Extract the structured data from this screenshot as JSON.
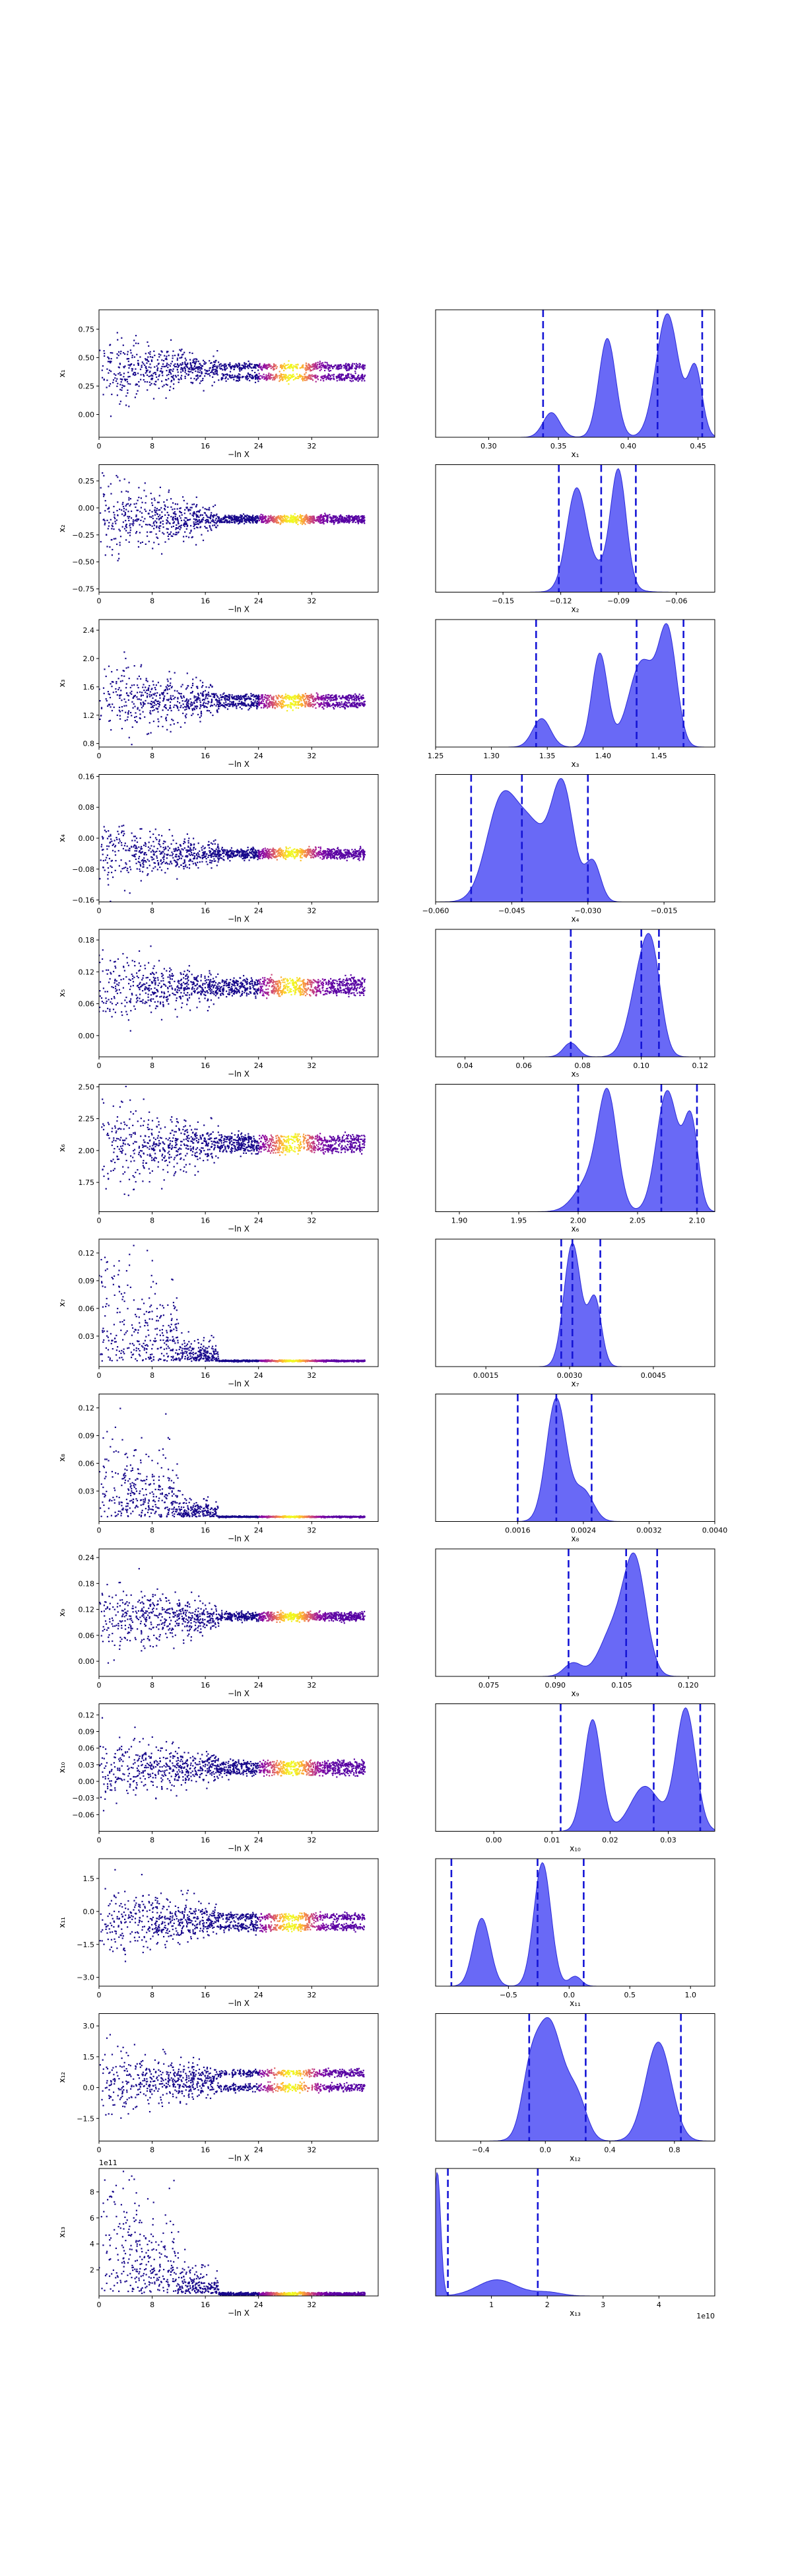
{
  "figure": {
    "kind": "nested-sampling trace and posterior plot"
  },
  "chart_data": [
    {
      "type": "scatter",
      "panel": "trace",
      "xlabel": "−ln X",
      "ylabel": "x₁",
      "xticks": [
        0,
        8,
        16,
        24,
        32
      ],
      "xlim": [
        0,
        42
      ],
      "ylim": [
        -0.2,
        0.92
      ],
      "yticks": [
        0.0,
        0.25,
        0.5,
        0.75
      ],
      "yfmt": 2,
      "center": 0.4,
      "amp0": 0.28,
      "ampEnd": 0.02,
      "clusters": [
        0.33,
        0.42
      ]
    },
    {
      "type": "area",
      "panel": "posterior",
      "xlabel": "x₁",
      "xlim": [
        0.262,
        0.462
      ],
      "xticks": [
        0.3,
        0.35,
        0.4,
        0.45
      ],
      "xfmt": 2,
      "peaks": [
        [
          0.345,
          0.006,
          0.2
        ],
        [
          0.385,
          0.006,
          0.8
        ],
        [
          0.428,
          0.008,
          1.0
        ],
        [
          0.448,
          0.005,
          0.55
        ]
      ],
      "quantiles": [
        0.339,
        0.421,
        0.453
      ]
    },
    {
      "type": "scatter",
      "panel": "trace",
      "xlabel": "−ln X",
      "ylabel": "x₂",
      "xticks": [
        0,
        8,
        16,
        24,
        32
      ],
      "xlim": [
        0,
        42
      ],
      "ylim": [
        -0.78,
        0.4
      ],
      "yticks": [
        -0.75,
        -0.5,
        -0.25,
        0.0,
        0.25
      ],
      "yfmt": 2,
      "center": -0.1,
      "amp0": 0.33,
      "ampEnd": 0.015,
      "clusters": [
        -0.12,
        -0.09
      ]
    },
    {
      "type": "area",
      "panel": "posterior",
      "xlabel": "x₂",
      "xlim": [
        -0.185,
        -0.04
      ],
      "xticks": [
        -0.15,
        -0.12,
        -0.09,
        -0.06
      ],
      "xfmt": 2,
      "peaks": [
        [
          -0.112,
          0.005,
          0.85
        ],
        [
          -0.09,
          0.004,
          1.0
        ],
        [
          -0.1,
          0.01,
          0.2
        ]
      ],
      "quantiles": [
        -0.121,
        -0.099,
        -0.081
      ]
    },
    {
      "type": "scatter",
      "panel": "trace",
      "xlabel": "−ln X",
      "ylabel": "x₃",
      "xticks": [
        0,
        8,
        16,
        24,
        32
      ],
      "xlim": [
        0,
        42
      ],
      "ylim": [
        0.75,
        2.55
      ],
      "yticks": [
        0.8,
        1.2,
        1.6,
        2.0,
        2.4
      ],
      "yfmt": 1,
      "center": 1.42,
      "amp0": 0.5,
      "ampEnd": 0.03,
      "clusters": [
        1.35,
        1.45
      ]
    },
    {
      "type": "area",
      "panel": "posterior",
      "xlabel": "x₃",
      "xlim": [
        1.25,
        1.5
      ],
      "xticks": [
        1.25,
        1.3,
        1.35,
        1.4,
        1.45
      ],
      "xfmt": 2,
      "peaks": [
        [
          1.345,
          0.008,
          0.25
        ],
        [
          1.397,
          0.007,
          0.82
        ],
        [
          1.435,
          0.012,
          0.75
        ],
        [
          1.458,
          0.008,
          0.95
        ]
      ],
      "quantiles": [
        1.34,
        1.43,
        1.472
      ]
    },
    {
      "type": "scatter",
      "panel": "trace",
      "xlabel": "−ln X",
      "ylabel": "x₄",
      "xticks": [
        0,
        8,
        16,
        24,
        32
      ],
      "xlim": [
        0,
        42
      ],
      "ylim": [
        -0.165,
        0.165
      ],
      "yticks": [
        -0.16,
        -0.08,
        0.0,
        0.08,
        0.16
      ],
      "yfmt": 2,
      "center": -0.04,
      "amp0": 0.07,
      "ampEnd": 0.006,
      "clusters": [
        -0.045,
        -0.035
      ]
    },
    {
      "type": "area",
      "panel": "posterior",
      "xlabel": "x₄",
      "xlim": [
        -0.06,
        -0.005
      ],
      "xticks": [
        -0.06,
        -0.045,
        -0.03,
        -0.015
      ],
      "xfmt": 3,
      "peaks": [
        [
          -0.047,
          0.003,
          0.88
        ],
        [
          -0.041,
          0.003,
          0.6
        ],
        [
          -0.035,
          0.0022,
          1.0
        ],
        [
          -0.029,
          0.0015,
          0.35
        ]
      ],
      "quantiles": [
        -0.053,
        -0.043,
        -0.03
      ]
    },
    {
      "type": "scatter",
      "panel": "trace",
      "xlabel": "−ln X",
      "ylabel": "x₅",
      "xticks": [
        0,
        8,
        16,
        24,
        32
      ],
      "xlim": [
        0,
        42
      ],
      "ylim": [
        -0.04,
        0.2
      ],
      "yticks": [
        0.0,
        0.06,
        0.12,
        0.18
      ],
      "yfmt": 2,
      "center": 0.09,
      "amp0": 0.06,
      "ampEnd": 0.006,
      "clusters": [
        0.085,
        0.1
      ]
    },
    {
      "type": "area",
      "panel": "posterior",
      "xlabel": "x₅",
      "xlim": [
        0.03,
        0.125
      ],
      "xticks": [
        0.04,
        0.06,
        0.08,
        0.1,
        0.12
      ],
      "xfmt": 2,
      "peaks": [
        [
          0.076,
          0.0025,
          0.15
        ],
        [
          0.1,
          0.004,
          0.85
        ],
        [
          0.104,
          0.003,
          0.7
        ]
      ],
      "quantiles": [
        0.076,
        0.1,
        0.106
      ]
    },
    {
      "type": "scatter",
      "panel": "trace",
      "xlabel": "−ln X",
      "ylabel": "x₆",
      "xticks": [
        0,
        8,
        16,
        24,
        32
      ],
      "xlim": [
        0,
        42
      ],
      "ylim": [
        1.52,
        2.52
      ],
      "yticks": [
        1.75,
        2.0,
        2.25,
        2.5
      ],
      "yfmt": 2,
      "center": 2.05,
      "amp0": 0.35,
      "ampEnd": 0.025,
      "clusters": [
        2.02,
        2.09
      ]
    },
    {
      "type": "area",
      "panel": "posterior",
      "xlabel": "x₆",
      "xlim": [
        1.88,
        2.115
      ],
      "xticks": [
        1.9,
        1.95,
        2.0,
        2.05,
        2.1
      ],
      "xfmt": 2,
      "peaks": [
        [
          2.025,
          0.008,
          0.85
        ],
        [
          2.01,
          0.012,
          0.25
        ],
        [
          2.075,
          0.009,
          0.95
        ],
        [
          2.095,
          0.006,
          0.7
        ]
      ],
      "quantiles": [
        2.0,
        2.07,
        2.1
      ]
    },
    {
      "type": "scatter",
      "panel": "trace",
      "xlabel": "−ln X",
      "ylabel": "x₇",
      "xticks": [
        0,
        8,
        16,
        24,
        32
      ],
      "xlim": [
        0,
        42
      ],
      "ylim": [
        -0.003,
        0.135
      ],
      "yticks": [
        0.03,
        0.06,
        0.09,
        0.12
      ],
      "yfmt": 2,
      "center": 0.003,
      "amp0": 0.05,
      "ampEnd": 0.0004,
      "clusters": [
        0.003,
        0.0035
      ],
      "skew": true
    },
    {
      "type": "area",
      "panel": "posterior",
      "xlabel": "x₇",
      "xlim": [
        0.0006,
        0.0056
      ],
      "xticks": [
        0.0015,
        0.003,
        0.0045
      ],
      "xfmt": 4,
      "peaks": [
        [
          0.00305,
          0.00015,
          1.0
        ],
        [
          0.00345,
          0.00012,
          0.55
        ]
      ],
      "quantiles": [
        0.00285,
        0.00305,
        0.00355
      ]
    },
    {
      "type": "scatter",
      "panel": "trace",
      "xlabel": "−ln X",
      "ylabel": "x₈",
      "xticks": [
        0,
        8,
        16,
        24,
        32
      ],
      "xlim": [
        0,
        42
      ],
      "ylim": [
        -0.003,
        0.135
      ],
      "yticks": [
        0.03,
        0.06,
        0.09,
        0.12
      ],
      "yfmt": 2,
      "center": 0.002,
      "amp0": 0.04,
      "ampEnd": 0.0004,
      "clusters": [
        0.002,
        0.0022
      ],
      "skew": true
    },
    {
      "type": "area",
      "panel": "posterior",
      "xlabel": "x₈",
      "xlim": [
        0.0006,
        0.004
      ],
      "xticks": [
        0.0016,
        0.0024,
        0.0032,
        0.004
      ],
      "xfmt": 4,
      "peaks": [
        [
          0.00207,
          0.00012,
          1.0
        ],
        [
          0.0024,
          0.00012,
          0.25
        ]
      ],
      "quantiles": [
        0.0016,
        0.00207,
        0.0025
      ]
    },
    {
      "type": "scatter",
      "panel": "trace",
      "xlabel": "−ln X",
      "ylabel": "x₉",
      "xticks": [
        0,
        8,
        16,
        24,
        32
      ],
      "xlim": [
        0,
        42
      ],
      "ylim": [
        -0.035,
        0.26
      ],
      "yticks": [
        0.0,
        0.06,
        0.12,
        0.18,
        0.24
      ],
      "yfmt": 2,
      "center": 0.1,
      "amp0": 0.08,
      "ampEnd": 0.005,
      "clusters": [
        0.1,
        0.107
      ]
    },
    {
      "type": "area",
      "panel": "posterior",
      "xlabel": "x₉",
      "xlim": [
        0.063,
        0.126
      ],
      "xticks": [
        0.075,
        0.09,
        0.105,
        0.12
      ],
      "xfmt": 3,
      "peaks": [
        [
          0.108,
          0.0025,
          1.0
        ],
        [
          0.103,
          0.003,
          0.4
        ],
        [
          0.094,
          0.002,
          0.12
        ]
      ],
      "quantiles": [
        0.093,
        0.106,
        0.113
      ]
    },
    {
      "type": "scatter",
      "panel": "trace",
      "xlabel": "−ln X",
      "ylabel": "x₁₀",
      "xticks": [
        0,
        8,
        16,
        24,
        32
      ],
      "xlim": [
        0,
        42
      ],
      "ylim": [
        -0.09,
        0.14
      ],
      "yticks": [
        -0.06,
        -0.03,
        0.0,
        0.03,
        0.06,
        0.09,
        0.12
      ],
      "yfmt": 2,
      "center": 0.025,
      "amp0": 0.06,
      "ampEnd": 0.005,
      "clusters": [
        0.018,
        0.03
      ]
    },
    {
      "type": "area",
      "panel": "posterior",
      "xlabel": "x₁₀",
      "xlim": [
        -0.01,
        0.038
      ],
      "xticks": [
        0.0,
        0.01,
        0.02,
        0.03
      ],
      "xfmt": 2,
      "peaks": [
        [
          0.017,
          0.0015,
          0.82
        ],
        [
          0.026,
          0.0025,
          0.33
        ],
        [
          0.033,
          0.0017,
          0.9
        ]
      ],
      "quantiles": [
        0.0115,
        0.0275,
        0.0355
      ]
    },
    {
      "type": "scatter",
      "panel": "trace",
      "xlabel": "−ln X",
      "ylabel": "x₁₁",
      "xticks": [
        0,
        8,
        16,
        24,
        32
      ],
      "xlim": [
        0,
        42
      ],
      "ylim": [
        -3.4,
        2.4
      ],
      "yticks": [
        -3.0,
        -1.5,
        0.0,
        1.5
      ],
      "yfmt": 1,
      "center": -0.4,
      "amp0": 1.6,
      "ampEnd": 0.12,
      "clusters": [
        -0.7,
        -0.25
      ]
    },
    {
      "type": "area",
      "panel": "posterior",
      "xlabel": "x₁₁",
      "xlim": [
        -1.1,
        1.2
      ],
      "xticks": [
        -0.5,
        0.0,
        0.5,
        1.0
      ],
      "xfmt": 1,
      "peaks": [
        [
          -0.72,
          0.07,
          0.55
        ],
        [
          -0.22,
          0.07,
          1.0
        ],
        [
          0.05,
          0.05,
          0.08
        ]
      ],
      "quantiles": [
        -0.97,
        -0.26,
        0.12
      ]
    },
    {
      "type": "scatter",
      "panel": "trace",
      "xlabel": "−ln X",
      "ylabel": "x₁₂",
      "xticks": [
        0,
        8,
        16,
        24,
        32
      ],
      "xlim": [
        0,
        42
      ],
      "ylim": [
        -2.6,
        3.6
      ],
      "yticks": [
        -1.5,
        0.0,
        1.5,
        3.0
      ],
      "yfmt": 1,
      "center": 0.3,
      "amp0": 1.5,
      "ampEnd": 0.12,
      "clusters": [
        0.0,
        0.7
      ]
    },
    {
      "type": "area",
      "panel": "posterior",
      "xlabel": "x₁₂",
      "xlim": [
        -0.68,
        1.05
      ],
      "xticks": [
        -0.4,
        0.0,
        0.4,
        0.8
      ],
      "xfmt": 1,
      "peaks": [
        [
          0.02,
          0.09,
          1.0
        ],
        [
          0.2,
          0.06,
          0.3
        ],
        [
          0.7,
          0.08,
          0.82
        ],
        [
          -0.1,
          0.05,
          0.3
        ]
      ],
      "quantiles": [
        -0.1,
        0.25,
        0.84
      ]
    },
    {
      "type": "scatter",
      "panel": "trace",
      "xlabel": "−ln X",
      "ylabel": "x₁₃",
      "xticks": [
        0,
        8,
        16,
        24,
        32
      ],
      "xlim": [
        0,
        42
      ],
      "ylim": [
        0,
        9.8
      ],
      "yticks": [
        2,
        4,
        6,
        8
      ],
      "yfmt": 0,
      "offset_label": "1e11",
      "center": 0.2,
      "amp0": 4.0,
      "ampEnd": 0.05,
      "clusters": [
        0.1,
        0.2
      ],
      "skew": true
    },
    {
      "type": "area",
      "panel": "posterior",
      "xlabel": "x₁₃",
      "xlim": [
        0,
        5
      ],
      "xticks": [
        1,
        2,
        3,
        4
      ],
      "xfmt": 0,
      "offset_label": "1e10",
      "peaks": [
        [
          0.03,
          0.06,
          1.0
        ],
        [
          1.1,
          0.35,
          0.13
        ],
        [
          2.0,
          0.25,
          0.03
        ]
      ],
      "quantiles": [
        0.22,
        1.83
      ]
    }
  ]
}
